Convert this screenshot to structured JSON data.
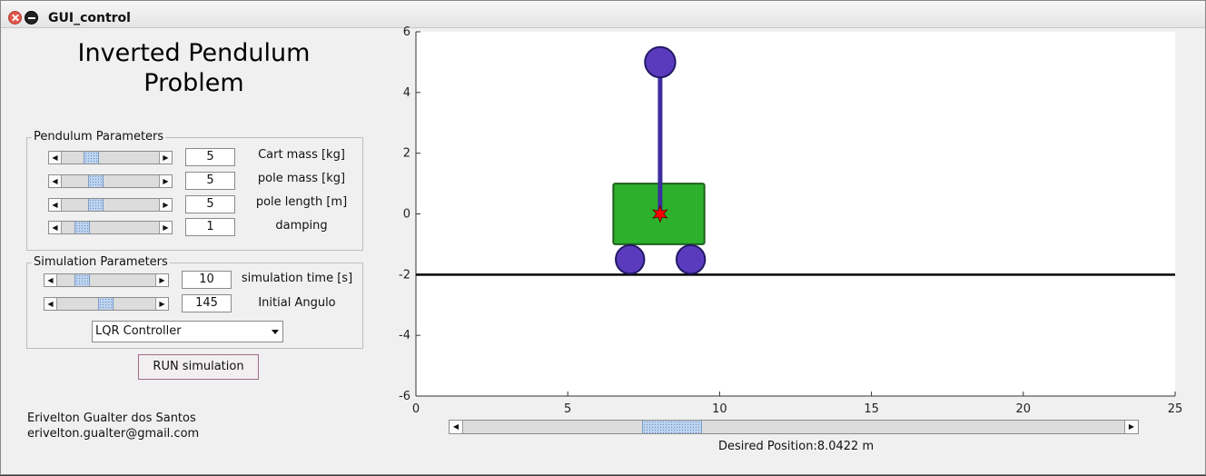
{
  "window": {
    "title": "GUI_control"
  },
  "app_title": {
    "line1": "Inverted Pendulum",
    "line2": "Problem"
  },
  "pendulum_params": {
    "label": "Pendulum Parameters",
    "rows": [
      {
        "label": "Cart mass [kg]",
        "value": "5",
        "level": 0.22
      },
      {
        "label": "pole mass [kg]",
        "value": "5",
        "level": 0.27
      },
      {
        "label": "pole length [m]",
        "value": "5",
        "level": 0.27
      },
      {
        "label": "damping",
        "value": "1",
        "level": 0.13
      }
    ]
  },
  "sim_params": {
    "label": "Simulation Parameters",
    "rows": [
      {
        "label": "simulation time [s]",
        "value": "10",
        "level": 0.18
      },
      {
        "label": "Initial Angulo",
        "value": "145",
        "level": 0.42
      }
    ],
    "controller": "LQR Controller"
  },
  "run_button": "RUN simulation",
  "author": {
    "name": "Erivelton Gualter dos Santos",
    "email": "erivelton.gualter@gmail.com"
  },
  "plot": {
    "xlim": [
      0,
      25
    ],
    "ylim": [
      -6,
      6
    ],
    "xticks": [
      "0",
      "5",
      "10",
      "15",
      "20",
      "25"
    ],
    "yticks": [
      "6",
      "4",
      "2",
      "0",
      "-2",
      "-4",
      "-6"
    ],
    "ground_y": -2,
    "cart": {
      "x": 8.0422,
      "x_min": 6.5,
      "x_max": 9.5,
      "y_min": -1,
      "y_max": 1
    },
    "wheels": [
      {
        "x": 7.05,
        "y": -1.5
      },
      {
        "x": 9.05,
        "y": -1.5
      }
    ],
    "pole_top": {
      "x": 8.0422,
      "y": 5
    },
    "pivot": {
      "x": 8.0422,
      "y": 0
    },
    "colors": {
      "cart": "#2db12d",
      "pole": "#3d2d9e",
      "wheel": "#5b3bbd",
      "pivot": "#ff0000",
      "ground": "#000000"
    }
  },
  "position_slider": {
    "level": 0.27
  },
  "desired_position": "Desired Position:8.0422 m",
  "icons": {
    "close": "close-icon",
    "minimize": "minimize-icon",
    "dropdown": "chevron-down-icon"
  }
}
